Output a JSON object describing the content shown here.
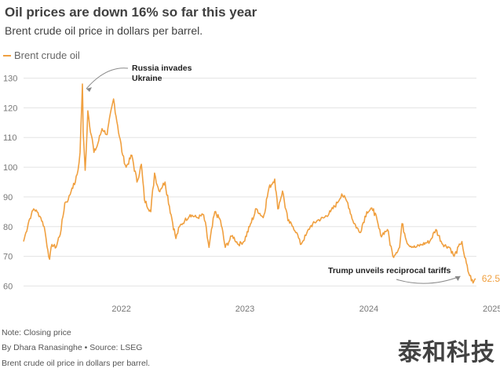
{
  "chart_data": {
    "type": "line",
    "title": "Oil prices are down 16% so far this year",
    "subtitle": "Brent crude oil price in dollars per barrel.",
    "legend": "Brent crude oil",
    "series_color": "#f0a040",
    "annotation_color": "#f0a040",
    "y_ticks": [
      60,
      70,
      80,
      90,
      100,
      110,
      120,
      130
    ],
    "x_ticks": [
      "2022",
      "2023",
      "2024",
      "2025"
    ],
    "ylim": [
      58,
      132
    ],
    "xlim": [
      "2021-09-15",
      "2025-05-15"
    ],
    "grid": true,
    "last_value_label": "62.52",
    "annotations": [
      {
        "text_line1": "Russia invades",
        "text_line2": "Ukraine",
        "date": "2022-03-08",
        "value": 128
      },
      {
        "text_line1": "Trump unveils reciprocal tariffs",
        "text_line2": "",
        "date": "2025-04-02",
        "value": 74
      }
    ],
    "series": [
      {
        "name": "Brent crude oil",
        "x": [
          "2021-09-15",
          "2021-09-22",
          "2021-10-01",
          "2021-10-08",
          "2021-10-15",
          "2021-10-25",
          "2021-11-05",
          "2021-11-15",
          "2021-11-26",
          "2021-12-01",
          "2021-12-08",
          "2021-12-20",
          "2022-01-04",
          "2022-01-15",
          "2022-01-25",
          "2022-02-05",
          "2022-02-15",
          "2022-02-23",
          "2022-03-01",
          "2022-03-08",
          "2022-03-10",
          "2022-03-16",
          "2022-03-24",
          "2022-04-11",
          "2022-04-20",
          "2022-05-05",
          "2022-05-20",
          "2022-06-08",
          "2022-06-20",
          "2022-07-05",
          "2022-07-15",
          "2022-08-01",
          "2022-08-16",
          "2022-08-29",
          "2022-09-07",
          "2022-09-26",
          "2022-10-07",
          "2022-10-20",
          "2022-11-07",
          "2022-11-25",
          "2022-12-09",
          "2022-12-20",
          "2023-01-04",
          "2023-01-20",
          "2023-02-10",
          "2023-03-01",
          "2023-03-17",
          "2023-04-03",
          "2023-04-20",
          "2023-05-04",
          "2023-05-25",
          "2023-06-12",
          "2023-06-28",
          "2023-07-15",
          "2023-08-04",
          "2023-08-24",
          "2023-09-10",
          "2023-09-27",
          "2023-10-06",
          "2023-10-20",
          "2023-11-05",
          "2023-11-20",
          "2023-12-01",
          "2023-12-12",
          "2023-12-28",
          "2024-01-10",
          "2024-01-30",
          "2024-02-20",
          "2024-03-10",
          "2024-03-30",
          "2024-04-12",
          "2024-04-30",
          "2024-05-15",
          "2024-06-04",
          "2024-06-25",
          "2024-07-15",
          "2024-08-05",
          "2024-08-25",
          "2024-09-10",
          "2024-09-30",
          "2024-10-07",
          "2024-10-25",
          "2024-11-15",
          "2024-12-05",
          "2024-12-28",
          "2025-01-15",
          "2025-02-05",
          "2025-02-25",
          "2025-03-10",
          "2025-03-28",
          "2025-04-02",
          "2025-04-08",
          "2025-04-20",
          "2025-05-05",
          "2025-05-12"
        ],
        "values": [
          75,
          78,
          82,
          84,
          86,
          85,
          83,
          80,
          72,
          69,
          74,
          73,
          79,
          88,
          89,
          93,
          95,
          99,
          105,
          128,
          112,
          99,
          119,
          105,
          107,
          113,
          111,
          123,
          114,
          104,
          100,
          104,
          95,
          101,
          89,
          85,
          98,
          92,
          95,
          84,
          76,
          80,
          82,
          84,
          83,
          84,
          73,
          85,
          82,
          73,
          77,
          74,
          75,
          80,
          86,
          83,
          93,
          96,
          86,
          92,
          82,
          80,
          78,
          74,
          77,
          80,
          82,
          83,
          85,
          88,
          91,
          88,
          82,
          78,
          85,
          86,
          77,
          79,
          70,
          73,
          81,
          74,
          73,
          74,
          75,
          79,
          74,
          73,
          70,
          74,
          75,
          71,
          65,
          61,
          62.52
        ]
      }
    ]
  },
  "footer": {
    "note": "Note: Closing price",
    "byline": "By Dhara Ranasinghe",
    "source_sep": "•",
    "source": "Source: LSEG",
    "caption": "Brent crude oil price in dollars per barrel."
  },
  "watermark": "泰和科技"
}
